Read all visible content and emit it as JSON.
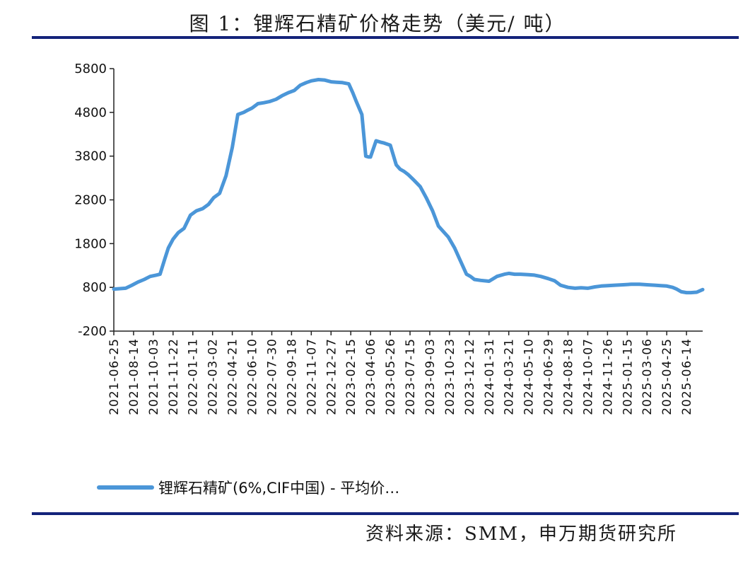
{
  "header": {
    "title": "图 1：锂辉石精矿价格走势（美元/ 吨）"
  },
  "footer": {
    "source": "资料来源：SMM，申万期货研究所"
  },
  "colors": {
    "series": "#4b96d8",
    "rule": "#14237a",
    "axis": "#222222"
  },
  "chart_data": {
    "type": "line",
    "title": "图 1：锂辉石精矿价格走势（美元/ 吨）",
    "ylim": [
      -200,
      5800
    ],
    "yticks": [
      -200,
      800,
      1800,
      2800,
      3800,
      4800,
      5800
    ],
    "ytick_labels": [
      "-200",
      "800",
      "1800",
      "2800",
      "3800",
      "4800",
      "5800"
    ],
    "xlim": [
      "2021-06-25",
      "2025-07-25"
    ],
    "xticks": [
      "2021-06-25",
      "2021-08-14",
      "2021-10-03",
      "2021-11-22",
      "2022-01-11",
      "2022-03-02",
      "2022-04-21",
      "2022-06-10",
      "2022-07-30",
      "2022-09-18",
      "2022-11-07",
      "2022-12-27",
      "2023-02-15",
      "2023-04-06",
      "2023-05-26",
      "2023-07-15",
      "2023-09-03",
      "2023-10-23",
      "2023-12-12",
      "2024-01-31",
      "2024-03-21",
      "2024-05-10",
      "2024-06-29",
      "2024-08-18",
      "2024-10-07",
      "2024-11-26",
      "2025-01-15",
      "2025-03-06",
      "2025-04-25",
      "2025-06-14"
    ],
    "grid": false,
    "legend": "bottom",
    "series": [
      {
        "name": "锂辉石精矿(6%,CIF中国) - 平均价…",
        "x": [
          "2021-06-25",
          "2021-07-10",
          "2021-07-25",
          "2021-08-10",
          "2021-08-25",
          "2021-09-10",
          "2021-09-25",
          "2021-10-10",
          "2021-10-20",
          "2021-11-01",
          "2021-11-10",
          "2021-11-22",
          "2021-12-05",
          "2021-12-20",
          "2022-01-05",
          "2022-01-20",
          "2022-02-05",
          "2022-02-20",
          "2022-03-05",
          "2022-03-20",
          "2022-04-05",
          "2022-04-21",
          "2022-05-05",
          "2022-05-20",
          "2022-05-30",
          "2022-06-10",
          "2022-06-25",
          "2022-07-10",
          "2022-07-25",
          "2022-08-10",
          "2022-08-25",
          "2022-09-10",
          "2022-09-25",
          "2022-10-10",
          "2022-10-25",
          "2022-11-07",
          "2022-11-25",
          "2022-12-10",
          "2022-12-27",
          "2023-01-10",
          "2023-01-25",
          "2023-02-10",
          "2023-02-20",
          "2023-03-01",
          "2023-03-15",
          "2023-03-25",
          "2023-04-01",
          "2023-04-06",
          "2023-04-20",
          "2023-05-01",
          "2023-05-10",
          "2023-05-26",
          "2023-06-10",
          "2023-06-20",
          "2023-06-30",
          "2023-07-10",
          "2023-07-25",
          "2023-08-10",
          "2023-08-25",
          "2023-09-10",
          "2023-09-25",
          "2023-10-05",
          "2023-10-20",
          "2023-11-05",
          "2023-11-20",
          "2023-12-05",
          "2023-12-15",
          "2023-12-25",
          "2024-01-10",
          "2024-01-31",
          "2024-02-20",
          "2024-03-10",
          "2024-03-21",
          "2024-04-05",
          "2024-04-20",
          "2024-05-10",
          "2024-05-25",
          "2024-06-10",
          "2024-06-29",
          "2024-07-15",
          "2024-07-30",
          "2024-08-18",
          "2024-09-05",
          "2024-09-20",
          "2024-10-07",
          "2024-10-25",
          "2024-11-10",
          "2024-11-26",
          "2024-12-15",
          "2025-01-05",
          "2025-01-25",
          "2025-02-15",
          "2025-03-06",
          "2025-03-25",
          "2025-04-10",
          "2025-04-25",
          "2025-05-10",
          "2025-05-20",
          "2025-06-01",
          "2025-06-14",
          "2025-06-25",
          "2025-07-10",
          "2025-07-25"
        ],
        "y": [
          760,
          770,
          780,
          850,
          920,
          980,
          1050,
          1080,
          1100,
          1450,
          1700,
          1900,
          2050,
          2150,
          2450,
          2550,
          2600,
          2700,
          2850,
          2950,
          3350,
          4000,
          4750,
          4800,
          4850,
          4900,
          5000,
          5020,
          5050,
          5100,
          5180,
          5250,
          5300,
          5420,
          5480,
          5520,
          5550,
          5540,
          5500,
          5490,
          5480,
          5450,
          5250,
          5050,
          4750,
          3800,
          3780,
          3780,
          4150,
          4120,
          4100,
          4050,
          3600,
          3500,
          3450,
          3380,
          3250,
          3100,
          2850,
          2550,
          2200,
          2100,
          1950,
          1700,
          1400,
          1100,
          1050,
          980,
          960,
          940,
          1050,
          1100,
          1120,
          1100,
          1100,
          1090,
          1080,
          1050,
          1000,
          950,
          850,
          800,
          780,
          790,
          780,
          810,
          830,
          840,
          850,
          860,
          870,
          870,
          860,
          850,
          840,
          830,
          800,
          760,
          700,
          680,
          680,
          690,
          750
        ]
      }
    ]
  }
}
